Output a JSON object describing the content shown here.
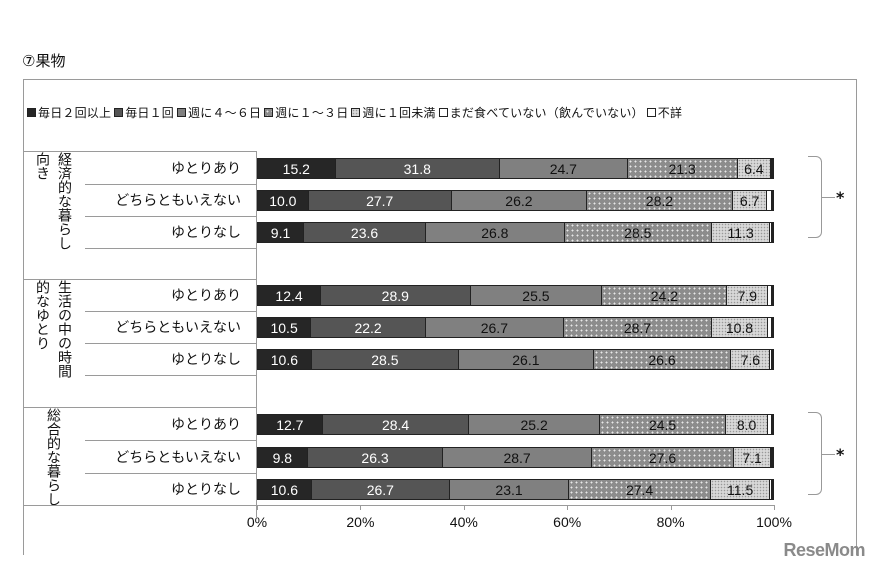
{
  "title": "⑦果物",
  "legend": [
    {
      "label": "毎日２回以上",
      "class": "s0"
    },
    {
      "label": "毎日１回",
      "class": "s1"
    },
    {
      "label": "週に４～６日",
      "class": "s2"
    },
    {
      "label": "週に１～３日",
      "class": "s3"
    },
    {
      "label": "週に１回未満",
      "class": "s4"
    },
    {
      "label": "まだ食べていない（飲んでいない）",
      "class": "s5"
    },
    {
      "label": "不詳",
      "class": "s6"
    }
  ],
  "groups": [
    {
      "label": "経済的な暮らし向き",
      "significant": "*"
    },
    {
      "label": "生活の中の時間的なゆとり",
      "significant": ""
    },
    {
      "label": "総合的な暮らし",
      "significant": "*"
    }
  ],
  "axis": {
    "ticks": [
      "0%",
      "20%",
      "40%",
      "60%",
      "80%",
      "100%"
    ]
  },
  "watermark": "ReseMom",
  "chart_data": {
    "type": "bar",
    "orientation": "horizontal-stacked-100",
    "title": "⑦果物",
    "xlabel": "",
    "ylabel": "",
    "xlim": [
      0,
      100
    ],
    "x_ticks": [
      "0%",
      "20%",
      "40%",
      "60%",
      "80%",
      "100%"
    ],
    "legend_position": "top",
    "series_names": [
      "毎日２回以上",
      "毎日１回",
      "週に４～６日",
      "週に１～３日",
      "週に１回未満",
      "まだ食べていない（飲んでいない）",
      "不詳"
    ],
    "rows": [
      {
        "group": "経済的な暮らし向き",
        "category": "ゆとりあり",
        "values": [
          15.2,
          31.8,
          24.7,
          21.3,
          6.4,
          0.2,
          0.4
        ]
      },
      {
        "group": "経済的な暮らし向き",
        "category": "どちらともいえない",
        "values": [
          10.0,
          27.7,
          26.2,
          28.2,
          6.7,
          0.9,
          0.3
        ]
      },
      {
        "group": "経済的な暮らし向き",
        "category": "ゆとりなし",
        "values": [
          9.1,
          23.6,
          26.8,
          28.5,
          11.3,
          0.3,
          0.4
        ]
      },
      {
        "group": "生活の中の時間的なゆとり",
        "category": "ゆとりあり",
        "values": [
          12.4,
          28.9,
          25.5,
          24.2,
          7.9,
          0.7,
          0.4
        ]
      },
      {
        "group": "生活の中の時間的なゆとり",
        "category": "どちらともいえない",
        "values": [
          10.5,
          22.2,
          26.7,
          28.7,
          10.8,
          0.8,
          0.3
        ]
      },
      {
        "group": "生活の中の時間的なゆとり",
        "category": "ゆとりなし",
        "values": [
          10.6,
          28.5,
          26.1,
          26.6,
          7.6,
          0.3,
          0.3
        ]
      },
      {
        "group": "総合的な暮らし",
        "category": "ゆとりあり",
        "values": [
          12.7,
          28.4,
          25.2,
          24.5,
          8.0,
          0.8,
          0.4
        ]
      },
      {
        "group": "総合的な暮らし",
        "category": "どちらともいえない",
        "values": [
          9.8,
          26.3,
          28.7,
          27.6,
          7.1,
          0.2,
          0.3
        ]
      },
      {
        "group": "総合的な暮らし",
        "category": "ゆとりなし",
        "values": [
          10.6,
          26.7,
          23.1,
          27.4,
          11.5,
          0.3,
          0.4
        ]
      }
    ],
    "annotations": [
      {
        "text": "*",
        "group": "経済的な暮らし向き"
      },
      {
        "text": "*",
        "group": "総合的な暮らし"
      }
    ]
  }
}
